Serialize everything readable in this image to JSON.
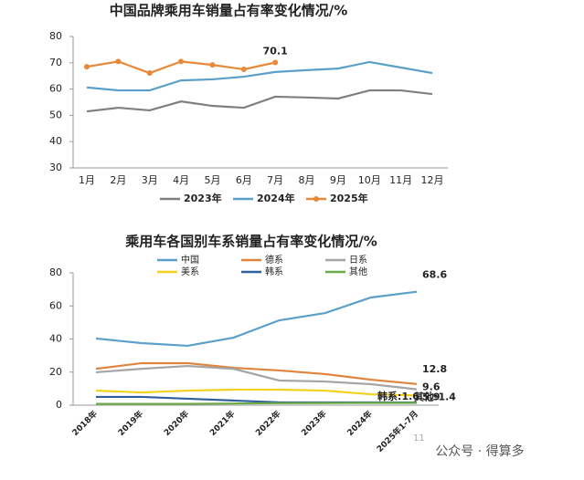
{
  "chart_data": [
    {
      "type": "line",
      "title": "中国品牌乘用车销量占有率变化情况/%",
      "categories": [
        "1月",
        "2月",
        "3月",
        "4月",
        "5月",
        "6月",
        "7月",
        "8月",
        "9月",
        "10月",
        "11月",
        "12月"
      ],
      "series": [
        {
          "name": "2023年",
          "color": "#7f7f7f",
          "values": [
            51.5,
            52.9,
            51.9,
            55.3,
            53.6,
            52.9,
            57.1,
            56.8,
            56.4,
            59.5,
            59.5,
            58.1
          ]
        },
        {
          "name": "2024年",
          "color": "#5aa0c8",
          "values": [
            60.6,
            59.5,
            59.5,
            63.3,
            63.7,
            64.7,
            66.5,
            67.2,
            67.8,
            70.3,
            68.2,
            66.1
          ]
        },
        {
          "name": "2025年",
          "color": "#e8893a",
          "markers": true,
          "values": [
            68.5,
            70.5,
            66.1,
            70.5,
            69.2,
            67.5,
            70.1,
            null,
            null,
            null,
            null,
            null
          ],
          "value_labels": [
            null,
            null,
            null,
            null,
            null,
            null,
            "70.1",
            null,
            null,
            null,
            null,
            null
          ]
        }
      ],
      "ylim": [
        30,
        80
      ],
      "yticks": [
        30,
        40,
        50,
        60,
        70,
        80
      ],
      "legend": "bottom"
    },
    {
      "type": "line",
      "title": "乘用车各国别车系销量占有率变化情况/%",
      "categories": [
        "2018年",
        "2019年",
        "2020年",
        "2021年",
        "2022年",
        "2023年",
        "2024年",
        "2025年1-7月"
      ],
      "series": [
        {
          "name": "中国",
          "color": "#5aa0c8",
          "values": [
            40.3,
            37.5,
            35.9,
            40.8,
            51.3,
            55.7,
            65.1,
            68.6
          ],
          "value_labels": [
            null,
            null,
            null,
            null,
            null,
            null,
            null,
            "68.6"
          ]
        },
        {
          "name": "德系",
          "color": "#e0843c",
          "values": [
            22,
            25.4,
            25.4,
            22.6,
            21,
            18.8,
            15.4,
            12.8
          ],
          "value_labels": [
            null,
            null,
            null,
            null,
            null,
            null,
            null,
            "12.8"
          ]
        },
        {
          "name": "日系",
          "color": "#a5a5a5",
          "values": [
            19.9,
            22,
            23.7,
            22,
            14.9,
            14.3,
            12.7,
            9.6
          ],
          "value_labels": [
            null,
            null,
            null,
            null,
            null,
            null,
            null,
            "9.6"
          ]
        },
        {
          "name": "美系",
          "color": "#f2d21b",
          "values": [
            8.8,
            7.7,
            8.8,
            9.4,
            9.4,
            8.8,
            6.6,
            5.9
          ],
          "value_labels": [
            null,
            null,
            null,
            null,
            null,
            null,
            null,
            "5.9"
          ]
        },
        {
          "name": "韩系",
          "color": "#2f5f9e",
          "values": [
            5,
            5,
            3.9,
            2.8,
            1.7,
            1.7,
            1.7,
            1.6
          ],
          "value_labels": [
            null,
            null,
            null,
            null,
            null,
            null,
            null,
            "韩系:1.6"
          ]
        },
        {
          "name": "其他",
          "color": "#6aab45",
          "values": [
            0.8,
            0.8,
            0.8,
            1,
            1.2,
            1.3,
            1.4,
            1.4
          ],
          "value_labels": [
            null,
            null,
            null,
            null,
            null,
            null,
            null,
            "其他:1.4"
          ]
        }
      ],
      "ylim": [
        0,
        80
      ],
      "yticks": [
        0,
        20,
        40,
        60,
        80
      ],
      "legend": "top"
    }
  ],
  "watermark": {
    "page": "11",
    "text": "公众号 · 得算多"
  }
}
